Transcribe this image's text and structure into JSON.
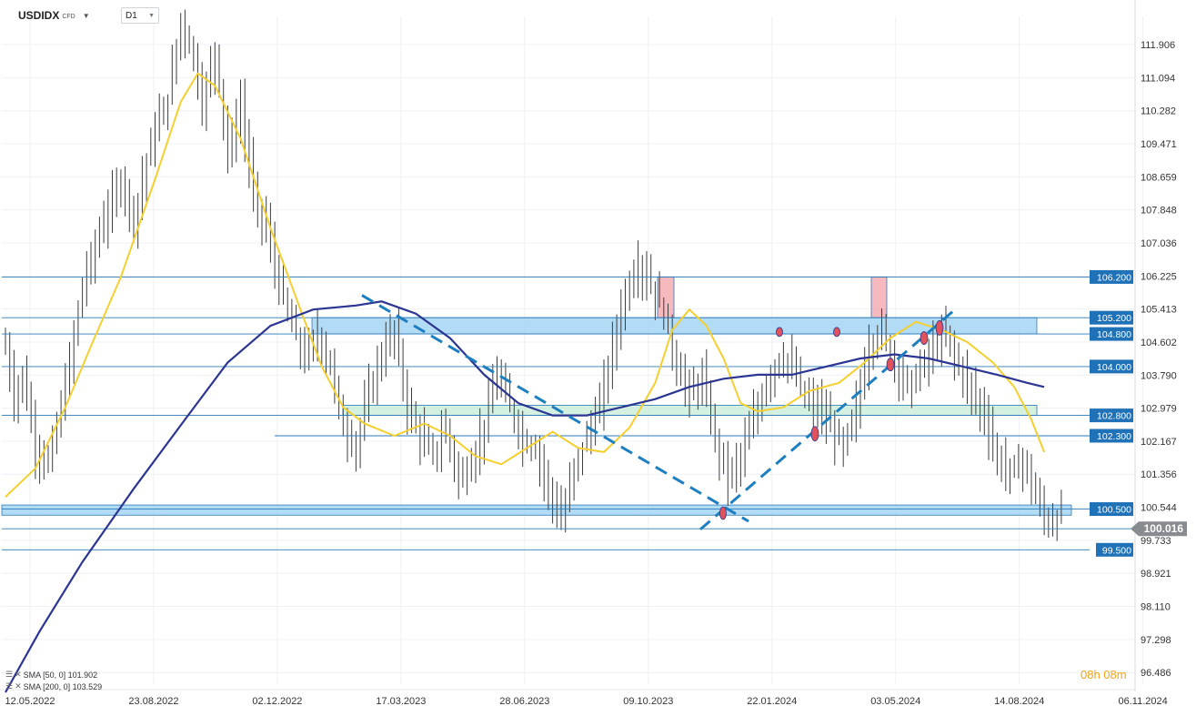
{
  "header": {
    "symbol": "USDIDX",
    "symbol_suffix": "CFD",
    "timeframe": "D1"
  },
  "legend": [
    {
      "label": "SMA  [50, 0]  101.902"
    },
    {
      "label": "SMA  [200, 0]  103.529"
    }
  ],
  "timer": "08h 08m",
  "colors": {
    "price_bars": "#3d3d3d",
    "sma50": "#f5cf2f",
    "sma200": "#2b3592",
    "level_line": "#2b7ab8",
    "level_tag": "#1f72b8",
    "zone_blue": "#9fd3f2",
    "zone_green": "#c8ecd9",
    "zone_red": "#f3a7ae",
    "trendline": "#1d7fc0",
    "current_price_tag": "#888b90"
  },
  "chart_data": {
    "type": "candlestick",
    "ylim": [
      96.2,
      112.6
    ],
    "y_ticks": [
      "111.906",
      "111.094",
      "110.282",
      "109.471",
      "108.659",
      "107.848",
      "107.036",
      "106.225",
      "105.413",
      "104.602",
      "103.790",
      "102.979",
      "102.167",
      "101.356",
      "100.544",
      "99.733",
      "98.921",
      "98.110",
      "97.298",
      "96.486"
    ],
    "x_ticks": [
      "12.05.2022",
      "23.08.2022",
      "02.12.2022",
      "17.03.2023",
      "28.06.2023",
      "09.10.2023",
      "22.01.2024",
      "03.05.2024",
      "14.08.2024",
      "06.11.2024"
    ],
    "current_price": "100.016",
    "price_path": [
      [
        0,
        104.5
      ],
      [
        2,
        103.2
      ],
      [
        4,
        103.8
      ],
      [
        7,
        102.0
      ],
      [
        10,
        101.6
      ],
      [
        14,
        103.5
      ],
      [
        18,
        106.0
      ],
      [
        22,
        107.3
      ],
      [
        27,
        108.6
      ],
      [
        30,
        107.6
      ],
      [
        34,
        109.5
      ],
      [
        38,
        110.6
      ],
      [
        41,
        112.5
      ],
      [
        44,
        111.6
      ],
      [
        46,
        110.4
      ],
      [
        49,
        111.8
      ],
      [
        52,
        109.2
      ],
      [
        55,
        110.4
      ],
      [
        58,
        108.2
      ],
      [
        61,
        107.4
      ],
      [
        64,
        106.0
      ],
      [
        67,
        105.0
      ],
      [
        70,
        104.2
      ],
      [
        73,
        104.8
      ],
      [
        76,
        104.0
      ],
      [
        79,
        102.5
      ],
      [
        82,
        102.0
      ],
      [
        85,
        103.4
      ],
      [
        88,
        104.3
      ],
      [
        91,
        104.9
      ],
      [
        94,
        103.0
      ],
      [
        97,
        102.3
      ],
      [
        100,
        101.8
      ],
      [
        103,
        102.5
      ],
      [
        106,
        101.2
      ],
      [
        109,
        101.6
      ],
      [
        112,
        102.6
      ],
      [
        115,
        103.8
      ],
      [
        118,
        103.0
      ],
      [
        121,
        102.2
      ],
      [
        124,
        102.0
      ],
      [
        127,
        101.0
      ],
      [
        130,
        100.2
      ],
      [
        133,
        101.5
      ],
      [
        136,
        102.3
      ],
      [
        139,
        103.0
      ],
      [
        142,
        104.5
      ],
      [
        145,
        105.8
      ],
      [
        148,
        106.5
      ],
      [
        151,
        106.0
      ],
      [
        154,
        105.3
      ],
      [
        157,
        104.0
      ],
      [
        160,
        103.3
      ],
      [
        163,
        103.7
      ],
      [
        166,
        102.2
      ],
      [
        169,
        101.3
      ],
      [
        172,
        101.8
      ],
      [
        175,
        102.7
      ],
      [
        178,
        103.6
      ],
      [
        181,
        104.2
      ],
      [
        184,
        104.0
      ],
      [
        187,
        103.2
      ],
      [
        190,
        103.0
      ],
      [
        193,
        102.5
      ],
      [
        196,
        102.0
      ],
      [
        199,
        103.0
      ],
      [
        202,
        104.5
      ],
      [
        205,
        104.9
      ],
      [
        208,
        104.1
      ],
      [
        211,
        103.5
      ],
      [
        214,
        103.9
      ],
      [
        217,
        104.5
      ],
      [
        220,
        104.8
      ],
      [
        223,
        104.0
      ],
      [
        226,
        103.4
      ],
      [
        229,
        102.8
      ],
      [
        232,
        101.7
      ],
      [
        235,
        101.4
      ],
      [
        238,
        101.7
      ],
      [
        241,
        100.8
      ],
      [
        243,
        100.3
      ],
      [
        245,
        100.1
      ],
      [
        247,
        100.5
      ]
    ],
    "series": [
      {
        "name": "SMA [50, 0]",
        "values": [
          [
            0,
            100.8
          ],
          [
            7,
            101.5
          ],
          [
            14,
            103.0
          ],
          [
            20,
            104.5
          ],
          [
            27,
            106.2
          ],
          [
            35,
            108.6
          ],
          [
            41,
            110.5
          ],
          [
            45,
            111.2
          ],
          [
            49,
            110.9
          ],
          [
            55,
            109.6
          ],
          [
            62,
            107.4
          ],
          [
            69,
            105.4
          ],
          [
            74,
            104.0
          ],
          [
            79,
            103.0
          ],
          [
            84,
            102.6
          ],
          [
            91,
            102.3
          ],
          [
            98,
            102.6
          ],
          [
            104,
            102.3
          ],
          [
            110,
            101.8
          ],
          [
            116,
            101.6
          ],
          [
            122,
            102.0
          ],
          [
            128,
            102.4
          ],
          [
            134,
            102.0
          ],
          [
            140,
            101.9
          ],
          [
            146,
            102.5
          ],
          [
            152,
            103.6
          ],
          [
            156,
            104.9
          ],
          [
            160,
            105.4
          ],
          [
            164,
            105.0
          ],
          [
            168,
            104.2
          ],
          [
            172,
            103.1
          ],
          [
            176,
            102.9
          ],
          [
            182,
            103.0
          ],
          [
            188,
            103.4
          ],
          [
            195,
            103.6
          ],
          [
            201,
            104.1
          ],
          [
            207,
            104.7
          ],
          [
            213,
            105.1
          ],
          [
            219,
            104.9
          ],
          [
            225,
            104.6
          ],
          [
            231,
            104.1
          ],
          [
            236,
            103.5
          ],
          [
            240,
            102.7
          ],
          [
            243,
            101.9
          ]
        ]
      },
      {
        "name": "SMA [200, 0]",
        "values": [
          [
            0,
            96.0
          ],
          [
            8,
            97.5
          ],
          [
            18,
            99.2
          ],
          [
            30,
            101.0
          ],
          [
            42,
            102.7
          ],
          [
            52,
            104.1
          ],
          [
            62,
            105.0
          ],
          [
            72,
            105.4
          ],
          [
            82,
            105.5
          ],
          [
            88,
            105.6
          ],
          [
            96,
            105.3
          ],
          [
            104,
            104.7
          ],
          [
            112,
            103.8
          ],
          [
            120,
            103.1
          ],
          [
            128,
            102.8
          ],
          [
            136,
            102.8
          ],
          [
            144,
            103.0
          ],
          [
            152,
            103.2
          ],
          [
            160,
            103.5
          ],
          [
            168,
            103.7
          ],
          [
            176,
            103.8
          ],
          [
            184,
            103.8
          ],
          [
            192,
            104.0
          ],
          [
            200,
            104.2
          ],
          [
            208,
            104.3
          ],
          [
            216,
            104.2
          ],
          [
            224,
            104.0
          ],
          [
            232,
            103.8
          ],
          [
            239,
            103.6
          ],
          [
            243,
            103.5
          ]
        ]
      }
    ],
    "levels": [
      {
        "label": "106.200",
        "value": 106.2
      },
      {
        "label": "105.200",
        "value": 105.2
      },
      {
        "label": "104.800",
        "value": 104.8
      },
      {
        "label": "104.000",
        "value": 104.0
      },
      {
        "label": "102.800",
        "value": 102.8
      },
      {
        "label": "102.300",
        "value": 102.3
      },
      {
        "label": "100.500",
        "value": 100.5
      },
      {
        "label": "99.500",
        "value": 99.5
      }
    ]
  }
}
